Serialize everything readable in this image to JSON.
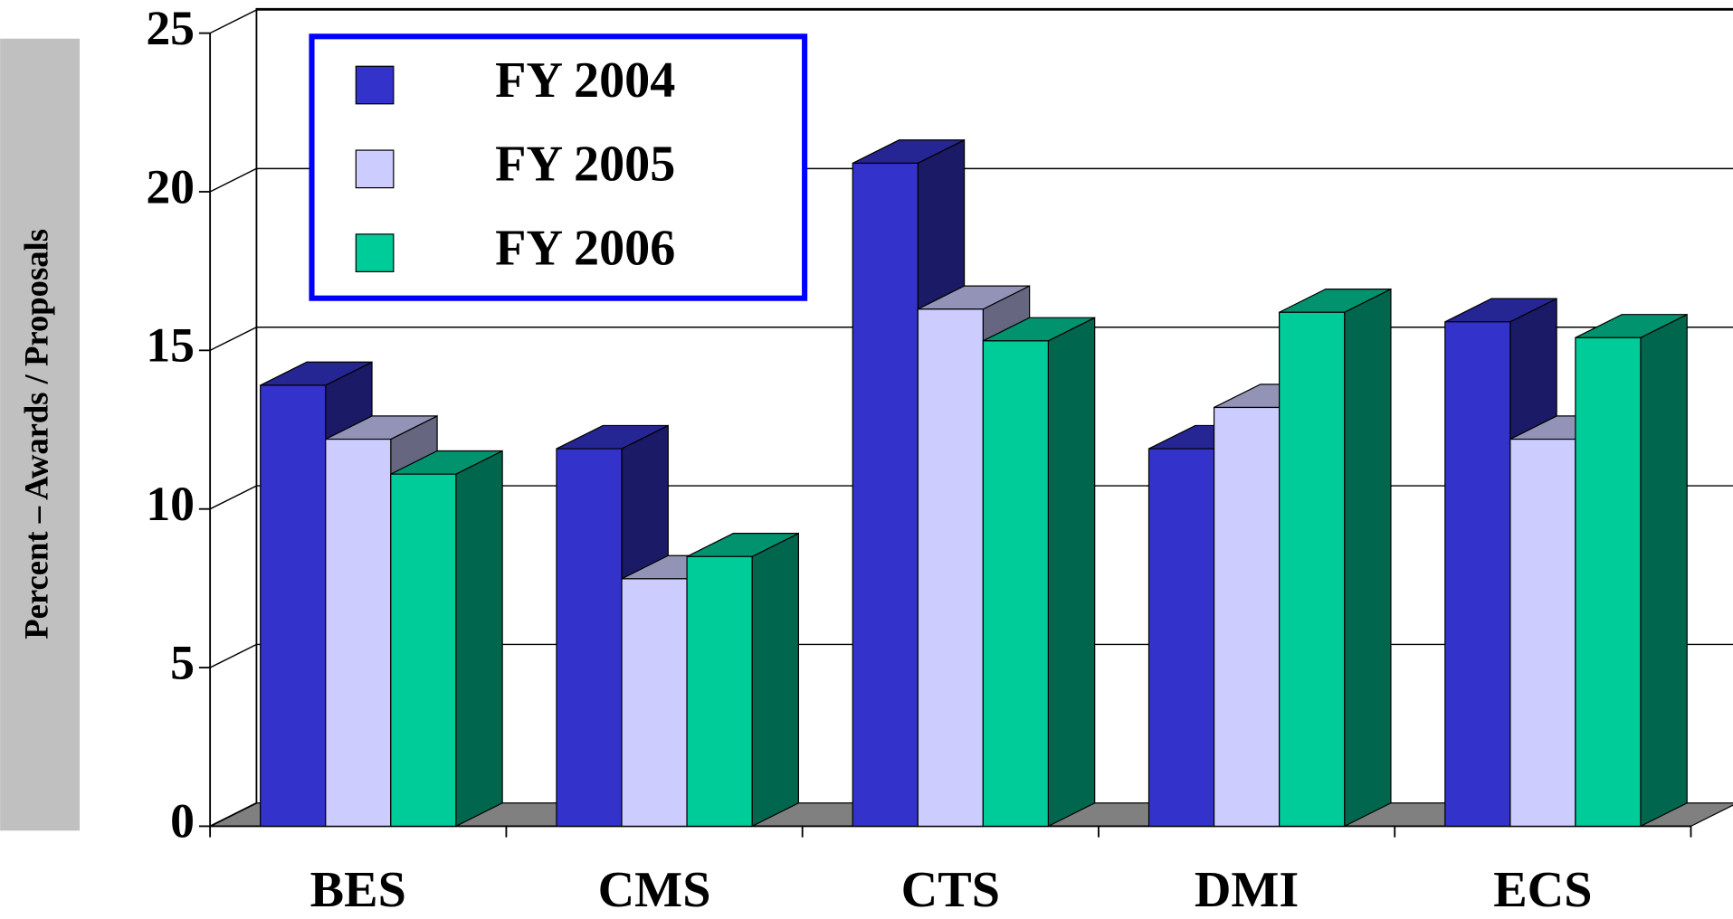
{
  "chart_data": {
    "type": "bar3d",
    "y_label": "Percent – Awards / Proposals",
    "categories": [
      "BES",
      "CMS",
      "CTS",
      "DMI",
      "ECS"
    ],
    "series": [
      {
        "name": "FY 2004",
        "color": "#3333cc",
        "values": [
          13.9,
          11.9,
          20.9,
          11.9,
          15.9
        ]
      },
      {
        "name": "FY 2005",
        "color": "#ccccff",
        "values": [
          12.2,
          7.8,
          16.3,
          13.2,
          12.2
        ]
      },
      {
        "name": "FY 2006",
        "color": "#00cc99",
        "values": [
          11.1,
          8.5,
          15.3,
          16.2,
          15.4
        ]
      }
    ],
    "ylim": [
      0,
      25
    ],
    "yticks": [
      0,
      5,
      10,
      15,
      20,
      25
    ],
    "grid": true,
    "legend": "top-left"
  }
}
